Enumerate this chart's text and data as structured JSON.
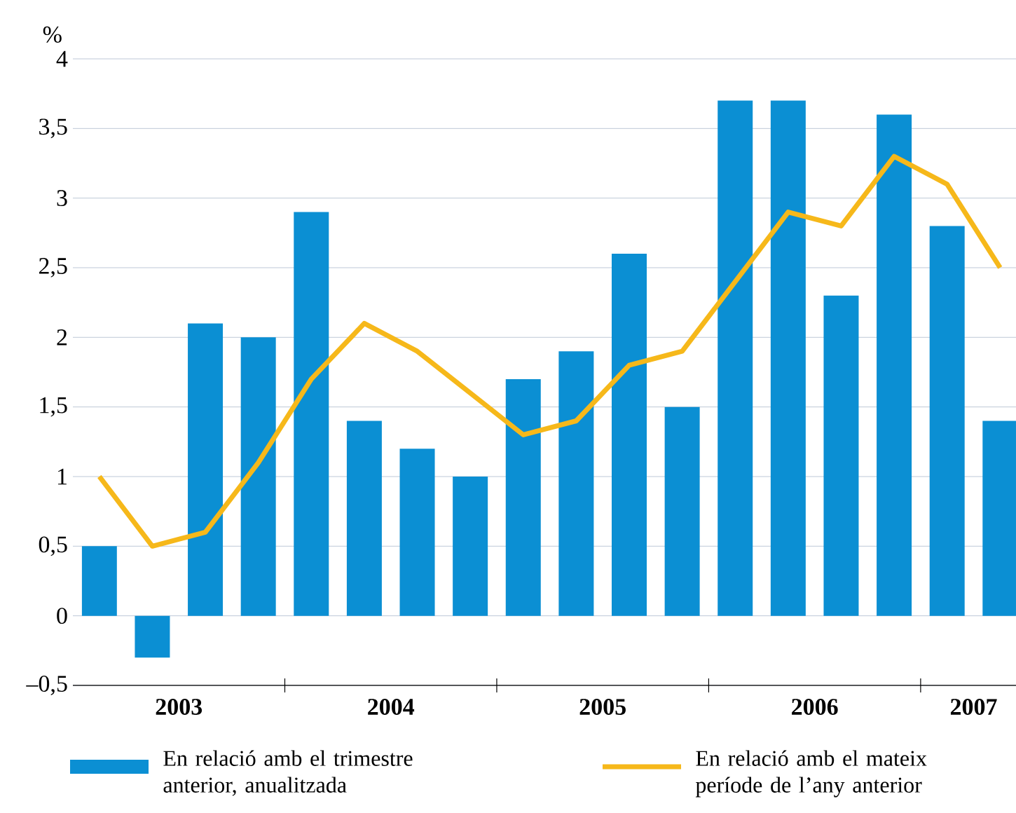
{
  "chart_data": {
    "type": "bar",
    "ylabel": "%",
    "x": [
      2003.125,
      2003.375,
      2003.625,
      2003.875,
      2004.125,
      2004.375,
      2004.625,
      2004.875,
      2005.125,
      2005.375,
      2005.625,
      2005.875,
      2006.125,
      2006.375,
      2006.625,
      2006.875,
      2007.125,
      2007.375
    ],
    "series": [
      {
        "name": "En relació amb el trimestre anterior, anualitzada",
        "color": "#0b8fd3",
        "values": [
          0.5,
          -0.3,
          2.1,
          2.0,
          2.9,
          1.4,
          1.2,
          1.0,
          1.7,
          1.9,
          2.6,
          1.5,
          3.7,
          3.7,
          2.3,
          3.6,
          2.8,
          1.4
        ]
      },
      {
        "name": "En relació amb el mateix període de l’any anterior",
        "type": "line",
        "color": "#f6b81a",
        "values": [
          1.0,
          0.5,
          0.6,
          1.1,
          1.7,
          2.1,
          1.9,
          1.6,
          1.3,
          1.4,
          1.8,
          1.9,
          2.4,
          2.9,
          2.8,
          3.3,
          3.1,
          2.5
        ]
      }
    ],
    "xlim": [
      2003,
      2007.45
    ],
    "xticks": [
      {
        "value": 2003.5,
        "label": "2003"
      },
      {
        "value": 2004,
        "label": null
      },
      {
        "value": 2004.5,
        "label": "2004"
      },
      {
        "value": 2005,
        "label": null
      },
      {
        "value": 2005.5,
        "label": "2005"
      },
      {
        "value": 2006,
        "label": null
      },
      {
        "value": 2006.5,
        "label": "2006"
      },
      {
        "value": 2007,
        "label": null
      },
      {
        "value": 2007.25,
        "label": "2007"
      }
    ],
    "ylim": [
      -0.5,
      4
    ],
    "yticks": [
      {
        "value": -0.5,
        "label": "–0,5"
      },
      0,
      {
        "value": 0.5,
        "label": "0,5"
      },
      1,
      {
        "value": 1.5,
        "label": "1,5"
      },
      2,
      {
        "value": 2.5,
        "label": "2,5"
      },
      3,
      {
        "value": 3.5,
        "label": "3,5"
      },
      4
    ],
    "grid": "y",
    "legend": "bottom"
  }
}
